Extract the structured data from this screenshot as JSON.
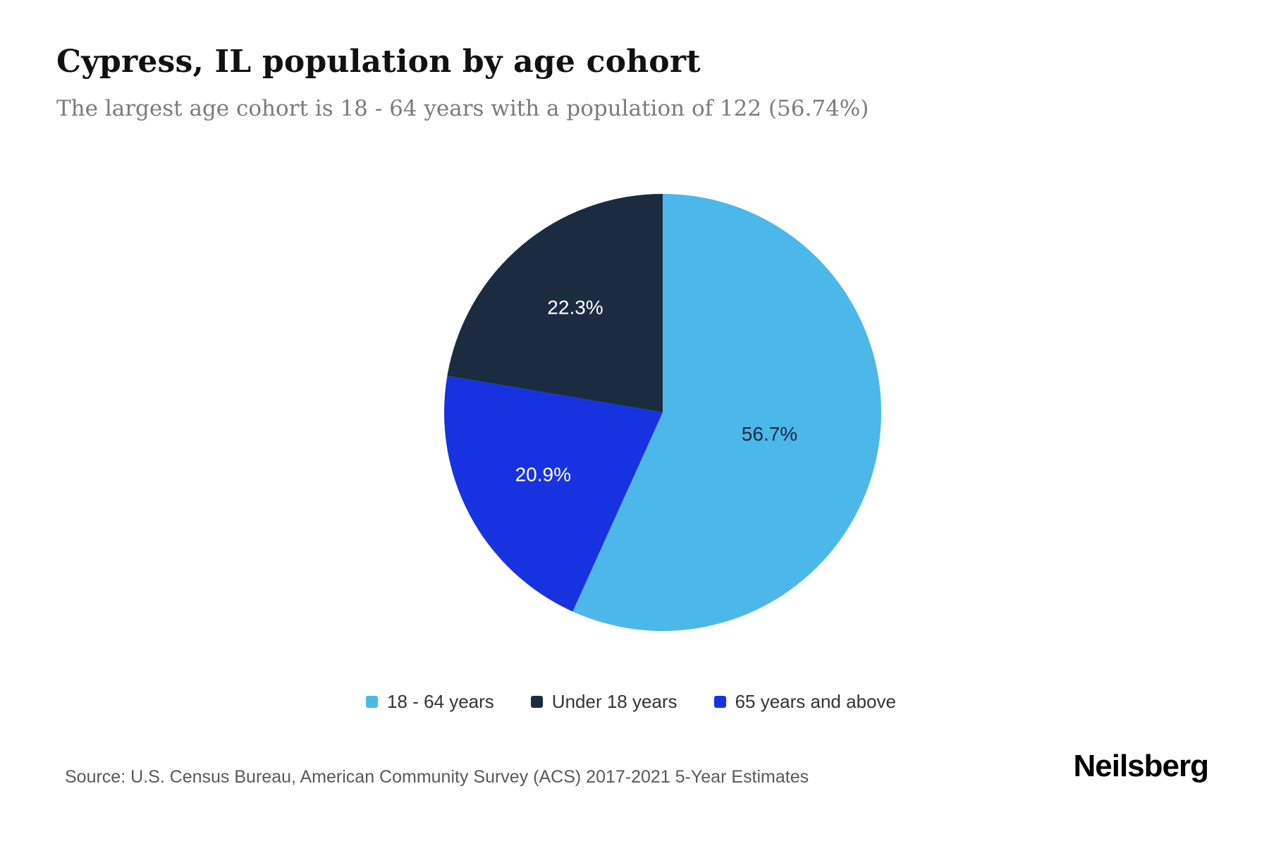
{
  "header": {
    "title": "Cypress, IL population by age cohort",
    "subtitle": "The largest age cohort is 18 - 64 years with a population of 122 (56.74%)"
  },
  "chart_data": {
    "type": "pie",
    "title": "Cypress, IL population by age cohort",
    "legend_position": "bottom",
    "slices": [
      {
        "label": "18 - 64 years",
        "value": 56.7,
        "display": "56.7%",
        "color": "#4cb7e9",
        "label_color": "#1b2b40",
        "label_r": 0.5
      },
      {
        "label": "Under 18 years",
        "value": 22.3,
        "display": "22.3%",
        "color": "#1b2b40",
        "label_color": "#ffffff",
        "label_r": 0.62
      },
      {
        "label": "65 years and above",
        "value": 20.9,
        "display": "20.9%",
        "color": "#1733e0",
        "label_color": "#ffffff",
        "label_r": 0.62
      }
    ],
    "draw_order": [
      0,
      2,
      1
    ],
    "largest_cohort": {
      "label": "18 - 64 years",
      "population": 122,
      "share_pct": 56.74
    }
  },
  "legend": {
    "items": [
      {
        "label": "18 - 64 years"
      },
      {
        "label": "Under 18 years"
      },
      {
        "label": "65 years and above"
      }
    ]
  },
  "footer": {
    "source": "Source: U.S. Census Bureau, American Community Survey (ACS) 2017-2021 5-Year Estimates",
    "logo": "Neilsberg"
  }
}
